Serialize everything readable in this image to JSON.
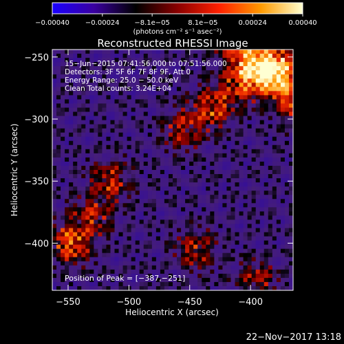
{
  "chart_data": {
    "type": "heatmap",
    "title": "Reconstructed RHESSI Image",
    "xlabel": "Heliocentric X (arcsec)",
    "ylabel": "Heliocentric Y (arcsec)",
    "xlim": [
      -563,
      -365
    ],
    "ylim": [
      -438,
      -244
    ],
    "x_ticks": [
      {
        "value": -550,
        "label": "−550"
      },
      {
        "value": -500,
        "label": "−500"
      },
      {
        "value": -450,
        "label": "−450"
      },
      {
        "value": -400,
        "label": "−400"
      }
    ],
    "y_ticks": [
      {
        "value": -250,
        "label": "−250"
      },
      {
        "value": -300,
        "label": "−300"
      },
      {
        "value": -350,
        "label": "−350"
      },
      {
        "value": -400,
        "label": "−400"
      }
    ],
    "colorbar": {
      "range": [
        -0.0004,
        0.0004
      ],
      "ticks": [
        {
          "value": -0.0004,
          "label": "−0.00040"
        },
        {
          "value": -0.00024,
          "label": "−0.00024"
        },
        {
          "value": -8.1e-05,
          "label": "−8.1e−05"
        },
        {
          "value": 8.1e-05,
          "label": "8.1e−05"
        },
        {
          "value": 0.00024,
          "label": "0.00024"
        },
        {
          "value": 0.0004,
          "label": "0.00040"
        }
      ],
      "unit_text": "(photons cm⁻² s⁻¹ asec⁻²)",
      "colors": [
        "#1a00ff",
        "#3a00a0",
        "#000000",
        "#8a0000",
        "#ff2000",
        "#ff9a00",
        "#ffffd0"
      ]
    },
    "annotations": [
      "15−Jun−2015 07:41:56.000 to 07:51:56.000",
      "Detectors: 3F 5F 6F 7F 8F 9F, Att 0",
      "Energy Range: 25.0 − 50.0 keV",
      "Clean     Total counts: 3.24E+04"
    ],
    "peak_label": "Position of Peak = [−387,−251]",
    "peak": {
      "x": -387,
      "y": -251
    },
    "bright_features": [
      {
        "x": -380,
        "y": -258,
        "level": 1.0
      },
      {
        "x": -405,
        "y": -268,
        "level": 0.9
      },
      {
        "x": -430,
        "y": -290,
        "level": 0.75
      },
      {
        "x": -455,
        "y": -308,
        "level": 0.6
      },
      {
        "x": -548,
        "y": -400,
        "level": 0.85
      },
      {
        "x": -530,
        "y": -378,
        "level": 0.55
      },
      {
        "x": -515,
        "y": -350,
        "level": 0.6
      },
      {
        "x": -445,
        "y": -405,
        "level": 0.55
      },
      {
        "x": -395,
        "y": -430,
        "level": 0.5
      }
    ]
  },
  "footer": {
    "timestamp": "22−Nov−2017 13:18"
  }
}
